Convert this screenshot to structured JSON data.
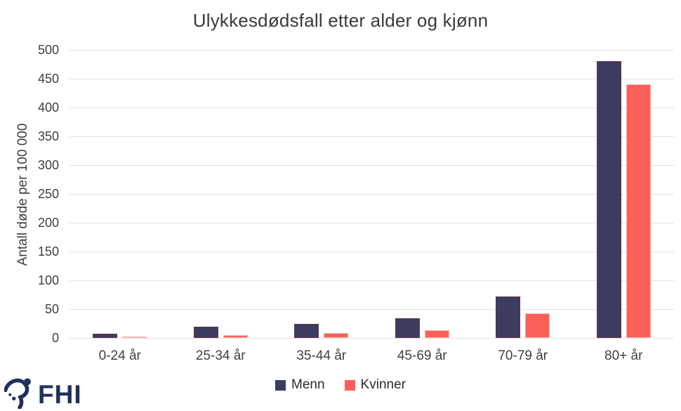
{
  "header": {
    "title": "Ulykkesdødsfall etter alder og kjønn"
  },
  "chart_data": {
    "type": "bar",
    "title": "Ulykkesdødsfall etter alder og kjønn",
    "ylabel": "Antall døde per 100 000",
    "xlabel": "",
    "categories": [
      "0-24 år",
      "25-34 år",
      "35-44 år",
      "45-69 år",
      "70-79 år",
      "80+ år"
    ],
    "series": [
      {
        "name": "Menn",
        "color": "#3b3c60",
        "border_color": "#6e2f4c",
        "values": [
          7,
          19,
          24,
          34,
          72,
          480
        ]
      },
      {
        "name": "Kvinner",
        "color": "#fa5f58",
        "border_color": "#fbb5af",
        "values": [
          3,
          5,
          8,
          13,
          43,
          440
        ]
      }
    ],
    "ylim": [
      0,
      500
    ],
    "ytick_step": 50,
    "grid": true,
    "legend_position": "bottom",
    "gridline_color": "#e2e2e2",
    "text_color": "#3f3f3f"
  },
  "logo": {
    "text": "FHI",
    "color": "#20305e",
    "icon": "fhi-swoosh-figure"
  }
}
